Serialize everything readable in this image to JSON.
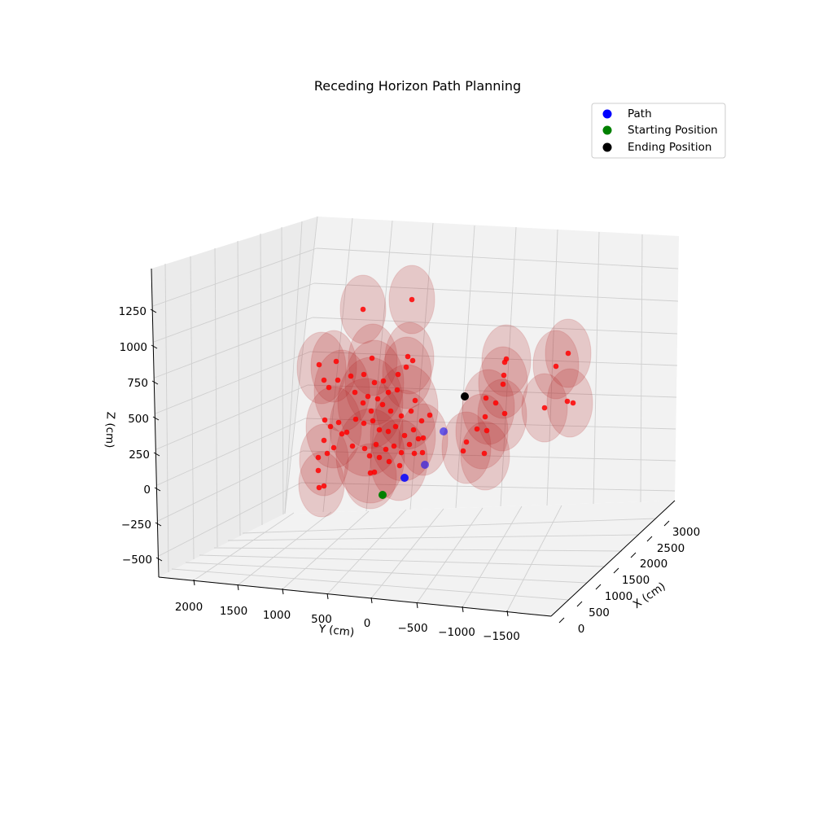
{
  "chart_data": {
    "type": "scatter3d",
    "title": "Receding Horizon Path Planning",
    "xlabel": "X (cm)",
    "ylabel": "Y (cm)",
    "zlabel": "Z (cm)",
    "xticks": [
      "0",
      "500",
      "1000",
      "1500",
      "2000",
      "2500",
      "3000"
    ],
    "yticks": [
      "2000",
      "1500",
      "1000",
      "500",
      "0",
      "−500",
      "−1000",
      "−1500"
    ],
    "zticks": [
      "1250",
      "1000",
      "750",
      "500",
      "250",
      "0",
      "−250",
      "−500"
    ],
    "grid": true,
    "legend_position": "top-right",
    "legend": [
      {
        "label": "Path",
        "color": "#0000ff"
      },
      {
        "label": "Starting Position",
        "color": "#008000"
      },
      {
        "label": "Ending Position",
        "color": "#000000"
      }
    ],
    "colors": {
      "obstacle": "#ff0000",
      "obstacle_sphere": "#b22222",
      "path": "#0000ff",
      "start": "#008000",
      "end": "#000000"
    },
    "path_points": [
      [
        497,
        587
      ],
      [
        522,
        571
      ],
      [
        545,
        530
      ]
    ],
    "start_point": [
      470,
      608
    ],
    "end_point": [
      571,
      487
    ],
    "obstacle_points": [
      [
        446,
        380
      ],
      [
        506,
        368
      ],
      [
        457,
        440
      ],
      [
        501,
        438
      ],
      [
        507,
        443
      ],
      [
        499,
        451
      ],
      [
        489,
        460
      ],
      [
        392,
        448
      ],
      [
        413,
        444
      ],
      [
        398,
        467
      ],
      [
        415,
        467
      ],
      [
        404,
        476
      ],
      [
        431,
        462
      ],
      [
        447,
        460
      ],
      [
        460,
        470
      ],
      [
        471,
        468
      ],
      [
        436,
        482
      ],
      [
        452,
        487
      ],
      [
        464,
        490
      ],
      [
        477,
        482
      ],
      [
        488,
        479
      ],
      [
        510,
        492
      ],
      [
        470,
        497
      ],
      [
        446,
        495
      ],
      [
        456,
        505
      ],
      [
        480,
        505
      ],
      [
        493,
        511
      ],
      [
        505,
        505
      ],
      [
        518,
        517
      ],
      [
        528,
        510
      ],
      [
        399,
        516
      ],
      [
        406,
        524
      ],
      [
        416,
        519
      ],
      [
        426,
        531
      ],
      [
        437,
        515
      ],
      [
        447,
        520
      ],
      [
        458,
        517
      ],
      [
        466,
        528
      ],
      [
        477,
        530
      ],
      [
        486,
        524
      ],
      [
        497,
        535
      ],
      [
        508,
        528
      ],
      [
        514,
        539
      ],
      [
        520,
        538
      ],
      [
        398,
        541
      ],
      [
        410,
        550
      ],
      [
        420,
        533
      ],
      [
        433,
        548
      ],
      [
        448,
        551
      ],
      [
        462,
        546
      ],
      [
        474,
        552
      ],
      [
        484,
        548
      ],
      [
        493,
        556
      ],
      [
        503,
        546
      ],
      [
        509,
        557
      ],
      [
        519,
        556
      ],
      [
        391,
        562
      ],
      [
        402,
        557
      ],
      [
        454,
        560
      ],
      [
        466,
        562
      ],
      [
        478,
        567
      ],
      [
        491,
        572
      ],
      [
        460,
        580
      ],
      [
        391,
        578
      ],
      [
        398,
        597
      ],
      [
        392,
        599
      ],
      [
        455,
        581
      ],
      [
        622,
        441
      ],
      [
        620,
        445
      ],
      [
        619,
        461
      ],
      [
        618,
        472
      ],
      [
        597,
        489
      ],
      [
        609,
        495
      ],
      [
        620,
        508
      ],
      [
        596,
        512
      ],
      [
        586,
        527
      ],
      [
        598,
        529
      ],
      [
        573,
        543
      ],
      [
        569,
        554
      ],
      [
        595,
        557
      ],
      [
        683,
        450
      ],
      [
        698,
        434
      ],
      [
        669,
        501
      ],
      [
        697,
        493
      ],
      [
        704,
        495
      ]
    ],
    "obstacle_spheres": [
      [
        446,
        380,
        28,
        42
      ],
      [
        506,
        368,
        28,
        42
      ],
      [
        395,
        452,
        30,
        44
      ],
      [
        410,
        450,
        28,
        44
      ],
      [
        458,
        442,
        30,
        44
      ],
      [
        503,
        440,
        30,
        44
      ],
      [
        460,
        470,
        36,
        52
      ],
      [
        500,
        458,
        30,
        44
      ],
      [
        420,
        480,
        34,
        50
      ],
      [
        455,
        495,
        40,
        56
      ],
      [
        500,
        500,
        38,
        52
      ],
      [
        410,
        525,
        34,
        50
      ],
      [
        450,
        525,
        45,
        60
      ],
      [
        495,
        535,
        40,
        56
      ],
      [
        520,
        540,
        30,
        44
      ],
      [
        398,
        565,
        30,
        44
      ],
      [
        455,
        560,
        42,
        58
      ],
      [
        490,
        565,
        35,
        50
      ],
      [
        395,
        595,
        28,
        40
      ],
      [
        455,
        585,
        32,
        40
      ],
      [
        622,
        443,
        30,
        44
      ],
      [
        618,
        470,
        30,
        44
      ],
      [
        600,
        500,
        32,
        46
      ],
      [
        617,
        510,
        30,
        44
      ],
      [
        592,
        530,
        32,
        46
      ],
      [
        573,
        550,
        30,
        44
      ],
      [
        596,
        560,
        30,
        42
      ],
      [
        683,
        448,
        28,
        42
      ],
      [
        698,
        434,
        28,
        42
      ],
      [
        669,
        501,
        28,
        42
      ],
      [
        700,
        495,
        28,
        42
      ]
    ]
  }
}
